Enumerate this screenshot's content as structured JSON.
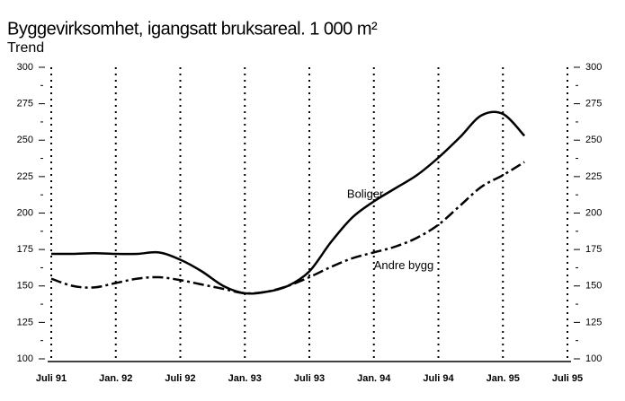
{
  "chart_data": {
    "type": "line",
    "title": "Byggevirksomhet, igangsatt bruksareal. 1 000 m²",
    "subtitle": "Trend",
    "x": [
      "1991-07",
      "1991-09",
      "1991-11",
      "1992-01",
      "1992-03",
      "1992-05",
      "1992-07",
      "1992-09",
      "1992-11",
      "1993-01",
      "1993-03",
      "1993-05",
      "1993-07",
      "1993-09",
      "1993-11",
      "1994-01",
      "1994-03",
      "1994-05",
      "1994-07",
      "1994-09",
      "1994-11",
      "1995-01",
      "1995-03"
    ],
    "series": [
      {
        "name": "Boliger",
        "color": "#000000",
        "dash": "solid",
        "values": [
          172,
          172,
          172.5,
          172,
          172,
          173,
          168,
          160,
          150,
          145,
          146,
          150,
          160,
          180,
          197,
          208,
          217,
          226,
          238,
          252,
          267,
          268,
          253
        ]
      },
      {
        "name": "Andre bygg",
        "color": "#000000",
        "dash": "dashdot",
        "values": [
          155,
          150,
          149,
          152,
          155,
          156,
          154,
          151,
          148,
          145,
          146,
          150,
          156,
          163,
          169,
          173,
          177,
          183,
          192,
          205,
          218,
          226,
          235
        ]
      }
    ],
    "xlim": [
      "1991-07",
      "1995-07"
    ],
    "xticks": [
      {
        "value": "1991-07",
        "label": "Juli 91"
      },
      {
        "value": "1992-01",
        "label": "Jan. 92"
      },
      {
        "value": "1992-07",
        "label": "Juli 92"
      },
      {
        "value": "1993-01",
        "label": "Jan. 93"
      },
      {
        "value": "1993-07",
        "label": "Juli 93"
      },
      {
        "value": "1994-01",
        "label": "Jan. 94"
      },
      {
        "value": "1994-07",
        "label": "Juli 94"
      },
      {
        "value": "1995-01",
        "label": "Jan. 95"
      },
      {
        "value": "1995-07",
        "label": "Juli 95"
      }
    ],
    "ylim": [
      100,
      300
    ],
    "yticks": [
      100,
      125,
      150,
      175,
      200,
      225,
      250,
      275,
      300
    ],
    "grid": true
  }
}
